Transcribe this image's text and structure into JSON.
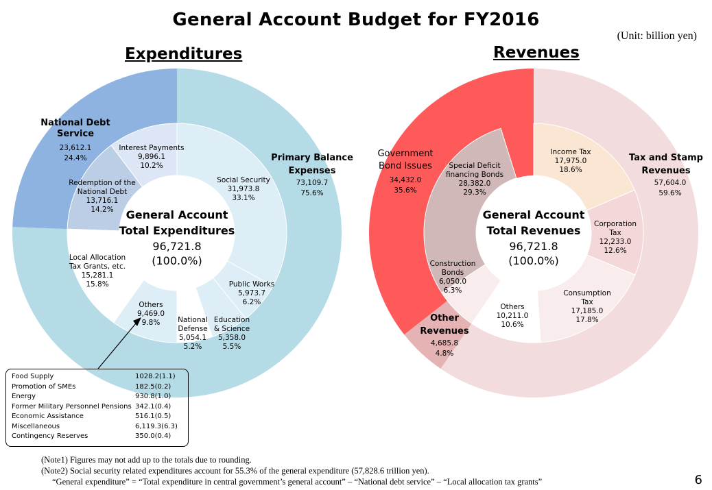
{
  "title": "General Account Budget for FY2016",
  "unit": "(Unit: billion yen)",
  "page_number": "6",
  "colors": {
    "exp_outer_primary": "#b4dbe6",
    "exp_outer_debt": "#8fb3e0",
    "exp_inner": "#ddeef6",
    "exp_inner_debt": "#bccde6",
    "exp_inner_debt2": "#dde6f4",
    "rev_outer_tax": "#f2dcdd",
    "rev_outer_bond": "#ff5a5a",
    "rev_outer_other": "#e6b3b4",
    "rev_inner_bond": "#d0b8b8",
    "rev_inner_income": "#fbe6d4",
    "rev_inner_tax": "#f4d8d9",
    "rev_inner_cons": "#f9ecec"
  },
  "chart_data": [
    {
      "type": "pie",
      "section": "Expenditures",
      "center_title_1": "General Account",
      "center_title_2": "Total Expenditures",
      "center_value": "96,721.8",
      "center_pct": "(100.0%)",
      "total": 96721.8,
      "outer": [
        {
          "name_lines": [
            "National Debt",
            "Service"
          ],
          "value": 23612.1,
          "value_text": "23,612.1",
          "pct": "24.4%"
        },
        {
          "name_lines": [
            "Primary Balance",
            "Expenses"
          ],
          "value": 73109.7,
          "value_text": "73,109.7",
          "pct": "75.6%"
        }
      ],
      "inner": [
        {
          "name_lines": [
            "Social Security"
          ],
          "value": 31973.8,
          "value_text": "31,973.8",
          "pct": "33.1%"
        },
        {
          "name_lines": [
            "Public Works"
          ],
          "value": 5973.7,
          "value_text": "5,973.7",
          "pct": "6.2%"
        },
        {
          "name_lines": [
            "Education",
            "& Science"
          ],
          "value": 5358.0,
          "value_text": "5,358.0",
          "pct": "5.5%"
        },
        {
          "name_lines": [
            "National",
            "Defense"
          ],
          "value": 5054.1,
          "value_text": "5,054.1",
          "pct": "5.2%"
        },
        {
          "name_lines": [
            "Others"
          ],
          "value": 9469.0,
          "value_text": "9,469.0",
          "pct": "9.8%"
        },
        {
          "name_lines": [
            "Local Allocation",
            "Tax Grants, etc."
          ],
          "value": 15281.1,
          "value_text": "15,281.1",
          "pct": "15.8%"
        },
        {
          "name_lines": [
            "Redemption of the",
            "National Debt"
          ],
          "value": 13716.1,
          "value_text": "13,716.1",
          "pct": "14.2%"
        },
        {
          "name_lines": [
            "Interest Payments"
          ],
          "value": 9896.1,
          "value_text": "9,896.1",
          "pct": "10.2%"
        }
      ]
    },
    {
      "type": "pie",
      "section": "Revenues",
      "center_title_1": "General Account",
      "center_title_2": "Total Revenues",
      "center_value": "96,721.8",
      "center_pct": "(100.0%)",
      "total": 96721.8,
      "outer": [
        {
          "name_lines": [
            "Tax and Stamp",
            "Revenues"
          ],
          "value": 57604.0,
          "value_text": "57,604.0",
          "pct": "59.6%"
        },
        {
          "name_lines": [
            "Other",
            "Revenues"
          ],
          "value": 4685.8,
          "value_text": "4,685.8",
          "pct": "4.8%"
        },
        {
          "name_lines": [
            "Government",
            "Bond Issues"
          ],
          "value": 34432.0,
          "value_text": "34,432.0",
          "pct": "35.6%"
        }
      ],
      "inner": [
        {
          "name_lines": [
            "Income Tax"
          ],
          "value": 17975.0,
          "value_text": "17,975.0",
          "pct": "18.6%"
        },
        {
          "name_lines": [
            "Corporation",
            "Tax"
          ],
          "value": 12233.0,
          "value_text": "12,233.0",
          "pct": "12.6%"
        },
        {
          "name_lines": [
            "Consumption",
            "Tax"
          ],
          "value": 17185.0,
          "value_text": "17,185.0",
          "pct": "17.8%"
        },
        {
          "name_lines": [
            "Others"
          ],
          "value": 10211.0,
          "value_text": "10,211.0",
          "pct": "10.6%"
        },
        {
          "name_lines": [
            "Construction",
            "Bonds"
          ],
          "value": 6050.0,
          "value_text": "6,050.0",
          "pct": "6.3%"
        },
        {
          "name_lines": [
            "Special Deficit",
            "financing Bonds"
          ],
          "value": 28382.0,
          "value_text": "28,382.0",
          "pct": "29.3%"
        }
      ]
    }
  ],
  "others_breakdown": [
    {
      "label": "Food Supply",
      "value": "1028.2(1.1)"
    },
    {
      "label": "Promotion of SMEs",
      "value": "182.5(0.2)"
    },
    {
      "label": "Energy",
      "value": "930.8(1.0)"
    },
    {
      "label": "Former Military Personnel Pensions",
      "value": "342.1(0.4)"
    },
    {
      "label": "Economic Assistance",
      "value": "516.1(0.5)"
    },
    {
      "label": "Miscellaneous",
      "value": "6,119.3(6.3)"
    },
    {
      "label": "Contingency Reserves",
      "value": "350.0(0.4)"
    }
  ],
  "notes": [
    "(Note1) Figures may not add up to the totals due to rounding.",
    "(Note2) Social security related expenditures account for 55.3% of the general expenditure (57,828.6 trillion yen).",
    "“General expenditure” = “Total expenditure in central government’s general account” – “National debt service” – “Local allocation tax grants”"
  ]
}
